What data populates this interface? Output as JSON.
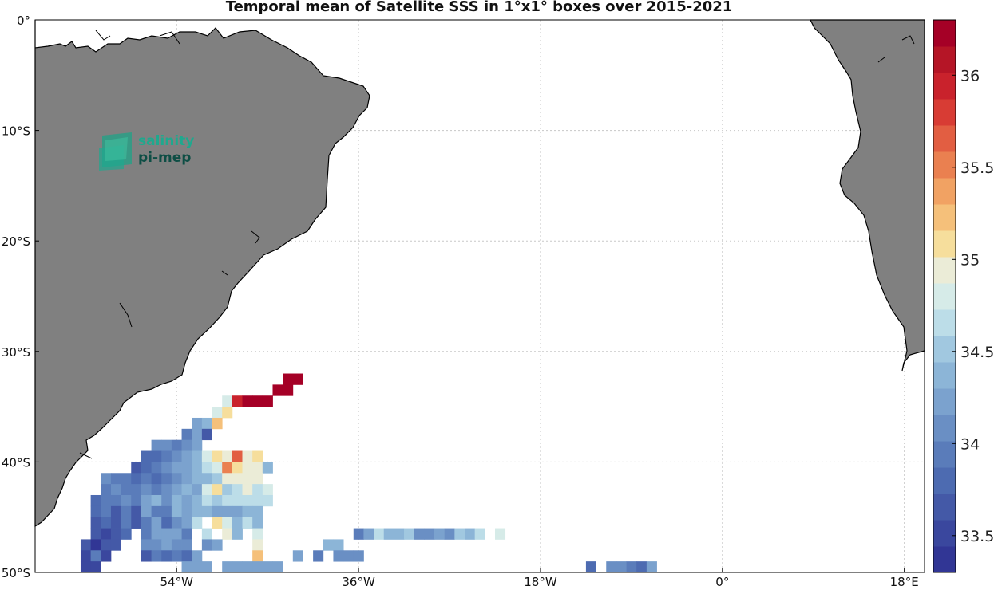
{
  "title": "Temporal mean of Satellite SSS in 1°x1° boxes over 2015-2021",
  "logo": {
    "line1": "salinity",
    "line2": "pi-mep"
  },
  "map": {
    "projection": "equirectangular",
    "lon_range": [
      -68,
      20
    ],
    "lat_range": [
      -50,
      0
    ],
    "grid": true,
    "land_color": "#808080",
    "lat_ticks": [
      {
        "value": 0,
        "label": "0°"
      },
      {
        "value": -10,
        "label": "10°S"
      },
      {
        "value": -20,
        "label": "20°S"
      },
      {
        "value": -30,
        "label": "30°S"
      },
      {
        "value": -40,
        "label": "40°S"
      },
      {
        "value": -50,
        "label": "50°S"
      }
    ],
    "lon_ticks": [
      {
        "value": -54,
        "label": "54°W"
      },
      {
        "value": -36,
        "label": "36°W"
      },
      {
        "value": -18,
        "label": "18°W"
      },
      {
        "value": 0,
        "label": "0°"
      },
      {
        "value": 18,
        "label": "18°E"
      }
    ]
  },
  "colorbar": {
    "min": 33.3,
    "max": 36.3,
    "colors": [
      "#313695",
      "#3a479e",
      "#4459a7",
      "#4d6bb1",
      "#5a7cba",
      "#6a8fc4",
      "#7ba2ce",
      "#8cb5d7",
      "#a1c8e0",
      "#bcdde8",
      "#d6ebe8",
      "#ebecd7",
      "#f6de9c",
      "#f5c07a",
      "#f1a263",
      "#ea8050",
      "#e25e42",
      "#d83c34",
      "#c9222c",
      "#b51526",
      "#a50026"
    ],
    "ticks": [
      {
        "value": 33.5,
        "label": "33.5"
      },
      {
        "value": 34,
        "label": "34"
      },
      {
        "value": 34.5,
        "label": "34.5"
      },
      {
        "value": 35,
        "label": "35"
      },
      {
        "value": 35.5,
        "label": "35.5"
      },
      {
        "value": 36,
        "label": "36"
      }
    ]
  },
  "chart_data": {
    "type": "heatmap",
    "title": "Temporal mean of Satellite SSS in 1°x1° boxes over 2015-2021",
    "variable": "Satellite SSS",
    "cell_size_deg": 1,
    "cells": [
      {
        "lon": -43,
        "lat": -32.5,
        "v": 36.2
      },
      {
        "lon": -42,
        "lat": -32.5,
        "v": 36.2
      },
      {
        "lon": -44,
        "lat": -33.5,
        "v": 36.2
      },
      {
        "lon": -43,
        "lat": -33.5,
        "v": 36.2
      },
      {
        "lon": -49,
        "lat": -34.5,
        "v": 34.8
      },
      {
        "lon": -48,
        "lat": -34.5,
        "v": 36.0
      },
      {
        "lon": -47,
        "lat": -34.5,
        "v": 36.2
      },
      {
        "lon": -46,
        "lat": -34.5,
        "v": 36.2
      },
      {
        "lon": -45,
        "lat": -34.5,
        "v": 36.2
      },
      {
        "lon": -50,
        "lat": -35.5,
        "v": 34.8
      },
      {
        "lon": -49,
        "lat": -35.5,
        "v": 35.1
      },
      {
        "lon": -52,
        "lat": -36.5,
        "v": 34.2
      },
      {
        "lon": -51,
        "lat": -36.5,
        "v": 34.3
      },
      {
        "lon": -50,
        "lat": -36.5,
        "v": 35.2
      },
      {
        "lon": -53,
        "lat": -37.5,
        "v": 34.0
      },
      {
        "lon": -52,
        "lat": -37.5,
        "v": 34.2
      },
      {
        "lon": -51,
        "lat": -37.5,
        "v": 33.7
      },
      {
        "lon": -56,
        "lat": -38.5,
        "v": 34.1
      },
      {
        "lon": -55,
        "lat": -38.5,
        "v": 34.1
      },
      {
        "lon": -54,
        "lat": -38.5,
        "v": 34.0
      },
      {
        "lon": -53,
        "lat": -38.5,
        "v": 34.1
      },
      {
        "lon": -52,
        "lat": -38.5,
        "v": 34.2
      },
      {
        "lon": -57,
        "lat": -39.5,
        "v": 33.8
      },
      {
        "lon": -56,
        "lat": -39.5,
        "v": 33.8
      },
      {
        "lon": -55,
        "lat": -39.5,
        "v": 34.0
      },
      {
        "lon": -54,
        "lat": -39.5,
        "v": 34.1
      },
      {
        "lon": -53,
        "lat": -39.5,
        "v": 34.2
      },
      {
        "lon": -52,
        "lat": -39.5,
        "v": 34.3
      },
      {
        "lon": -51,
        "lat": -39.5,
        "v": 34.8
      },
      {
        "lon": -50,
        "lat": -39.5,
        "v": 35.1
      },
      {
        "lon": -49,
        "lat": -39.5,
        "v": 34.9
      },
      {
        "lon": -48,
        "lat": -39.5,
        "v": 35.6
      },
      {
        "lon": -47,
        "lat": -39.5,
        "v": 34.9
      },
      {
        "lon": -46,
        "lat": -39.5,
        "v": 35.1
      },
      {
        "lon": -58,
        "lat": -40.5,
        "v": 33.7
      },
      {
        "lon": -57,
        "lat": -40.5,
        "v": 33.8
      },
      {
        "lon": -56,
        "lat": -40.5,
        "v": 34.0
      },
      {
        "lon": -55,
        "lat": -40.5,
        "v": 34.1
      },
      {
        "lon": -54,
        "lat": -40.5,
        "v": 34.2
      },
      {
        "lon": -53,
        "lat": -40.5,
        "v": 34.2
      },
      {
        "lon": -52,
        "lat": -40.5,
        "v": 34.3
      },
      {
        "lon": -51,
        "lat": -40.5,
        "v": 34.6
      },
      {
        "lon": -50,
        "lat": -40.5,
        "v": 34.8
      },
      {
        "lon": -49,
        "lat": -40.5,
        "v": 35.5
      },
      {
        "lon": -48,
        "lat": -40.5,
        "v": 35.1
      },
      {
        "lon": -47,
        "lat": -40.5,
        "v": 35.0
      },
      {
        "lon": -46,
        "lat": -40.5,
        "v": 34.9
      },
      {
        "lon": -45,
        "lat": -40.5,
        "v": 34.4
      },
      {
        "lon": -61,
        "lat": -41.5,
        "v": 34.1
      },
      {
        "lon": -60,
        "lat": -41.5,
        "v": 34.0
      },
      {
        "lon": -59,
        "lat": -41.5,
        "v": 34.0
      },
      {
        "lon": -58,
        "lat": -41.5,
        "v": 33.8
      },
      {
        "lon": -57,
        "lat": -41.5,
        "v": 34.0
      },
      {
        "lon": -56,
        "lat": -41.5,
        "v": 33.8
      },
      {
        "lon": -55,
        "lat": -41.5,
        "v": 34.0
      },
      {
        "lon": -54,
        "lat": -41.5,
        "v": 34.1
      },
      {
        "lon": -53,
        "lat": -41.5,
        "v": 34.2
      },
      {
        "lon": -52,
        "lat": -41.5,
        "v": 34.3
      },
      {
        "lon": -51,
        "lat": -41.5,
        "v": 34.4
      },
      {
        "lon": -50,
        "lat": -41.5,
        "v": 34.5
      },
      {
        "lon": -49,
        "lat": -41.5,
        "v": 34.9
      },
      {
        "lon": -48,
        "lat": -41.5,
        "v": 34.9
      },
      {
        "lon": -47,
        "lat": -41.5,
        "v": 34.9
      },
      {
        "lon": -46,
        "lat": -41.5,
        "v": 34.9
      },
      {
        "lon": -61,
        "lat": -42.5,
        "v": 34.0
      },
      {
        "lon": -60,
        "lat": -42.5,
        "v": 34.1
      },
      {
        "lon": -59,
        "lat": -42.5,
        "v": 33.9
      },
      {
        "lon": -58,
        "lat": -42.5,
        "v": 33.9
      },
      {
        "lon": -57,
        "lat": -42.5,
        "v": 34.1
      },
      {
        "lon": -56,
        "lat": -42.5,
        "v": 34.0
      },
      {
        "lon": -55,
        "lat": -42.5,
        "v": 34.1
      },
      {
        "lon": -54,
        "lat": -42.5,
        "v": 34.2
      },
      {
        "lon": -53,
        "lat": -42.5,
        "v": 34.3
      },
      {
        "lon": -52,
        "lat": -42.5,
        "v": 34.2
      },
      {
        "lon": -51,
        "lat": -42.5,
        "v": 34.8
      },
      {
        "lon": -50,
        "lat": -42.5,
        "v": 35.1
      },
      {
        "lon": -49,
        "lat": -42.5,
        "v": 34.5
      },
      {
        "lon": -48,
        "lat": -42.5,
        "v": 34.6
      },
      {
        "lon": -47,
        "lat": -42.5,
        "v": 35.0
      },
      {
        "lon": -46,
        "lat": -42.5,
        "v": 34.7
      },
      {
        "lon": -45,
        "lat": -42.5,
        "v": 34.8
      },
      {
        "lon": -62,
        "lat": -43.5,
        "v": 33.8
      },
      {
        "lon": -61,
        "lat": -43.5,
        "v": 33.9
      },
      {
        "lon": -60,
        "lat": -43.5,
        "v": 34.0
      },
      {
        "lon": -59,
        "lat": -43.5,
        "v": 34.1
      },
      {
        "lon": -58,
        "lat": -43.5,
        "v": 34.0
      },
      {
        "lon": -57,
        "lat": -43.5,
        "v": 34.2
      },
      {
        "lon": -56,
        "lat": -43.5,
        "v": 34.3
      },
      {
        "lon": -55,
        "lat": -43.5,
        "v": 34.1
      },
      {
        "lon": -54,
        "lat": -43.5,
        "v": 34.3
      },
      {
        "lon": -53,
        "lat": -43.5,
        "v": 34.2
      },
      {
        "lon": -52,
        "lat": -43.5,
        "v": 34.3
      },
      {
        "lon": -51,
        "lat": -43.5,
        "v": 34.6
      },
      {
        "lon": -50,
        "lat": -43.5,
        "v": 34.5
      },
      {
        "lon": -49,
        "lat": -43.5,
        "v": 34.6
      },
      {
        "lon": -48,
        "lat": -43.5,
        "v": 34.6
      },
      {
        "lon": -47,
        "lat": -43.5,
        "v": 34.6
      },
      {
        "lon": -46,
        "lat": -43.5,
        "v": 34.6
      },
      {
        "lon": -45,
        "lat": -43.5,
        "v": 34.6
      },
      {
        "lon": -62,
        "lat": -44.5,
        "v": 33.8
      },
      {
        "lon": -61,
        "lat": -44.5,
        "v": 34.0
      },
      {
        "lon": -60,
        "lat": -44.5,
        "v": 33.7
      },
      {
        "lon": -59,
        "lat": -44.5,
        "v": 33.9
      },
      {
        "lon": -58,
        "lat": -44.5,
        "v": 33.7
      },
      {
        "lon": -57,
        "lat": -44.5,
        "v": 34.2
      },
      {
        "lon": -56,
        "lat": -44.5,
        "v": 34.0
      },
      {
        "lon": -55,
        "lat": -44.5,
        "v": 34.0
      },
      {
        "lon": -54,
        "lat": -44.5,
        "v": 34.3
      },
      {
        "lon": -53,
        "lat": -44.5,
        "v": 34.2
      },
      {
        "lon": -52,
        "lat": -44.5,
        "v": 34.3
      },
      {
        "lon": -51,
        "lat": -44.5,
        "v": 34.3
      },
      {
        "lon": -50,
        "lat": -44.5,
        "v": 34.2
      },
      {
        "lon": -49,
        "lat": -44.5,
        "v": 34.2
      },
      {
        "lon": -48,
        "lat": -44.5,
        "v": 34.2
      },
      {
        "lon": -47,
        "lat": -44.5,
        "v": 34.3
      },
      {
        "lon": -46,
        "lat": -44.5,
        "v": 34.3
      },
      {
        "lon": -62,
        "lat": -45.5,
        "v": 33.7
      },
      {
        "lon": -61,
        "lat": -45.5,
        "v": 33.8
      },
      {
        "lon": -60,
        "lat": -45.5,
        "v": 33.7
      },
      {
        "lon": -59,
        "lat": -45.5,
        "v": 34.0
      },
      {
        "lon": -58,
        "lat": -45.5,
        "v": 33.6
      },
      {
        "lon": -57,
        "lat": -45.5,
        "v": 34.0
      },
      {
        "lon": -56,
        "lat": -45.5,
        "v": 34.2
      },
      {
        "lon": -55,
        "lat": -45.5,
        "v": 33.8
      },
      {
        "lon": -54,
        "lat": -45.5,
        "v": 34.1
      },
      {
        "lon": -53,
        "lat": -45.5,
        "v": 34.2
      },
      {
        "lon": -52,
        "lat": -45.5,
        "v": 34.6
      },
      {
        "lon": -50,
        "lat": -45.5,
        "v": 35.1
      },
      {
        "lon": -49,
        "lat": -45.5,
        "v": 34.8
      },
      {
        "lon": -48,
        "lat": -45.5,
        "v": 34.4
      },
      {
        "lon": -47,
        "lat": -45.5,
        "v": 34.6
      },
      {
        "lon": -46,
        "lat": -45.5,
        "v": 34.3
      },
      {
        "lon": -62,
        "lat": -46.5,
        "v": 33.7
      },
      {
        "lon": -61,
        "lat": -46.5,
        "v": 33.5
      },
      {
        "lon": -60,
        "lat": -46.5,
        "v": 33.7
      },
      {
        "lon": -59,
        "lat": -46.5,
        "v": 33.8
      },
      {
        "lon": -57,
        "lat": -46.5,
        "v": 34.0
      },
      {
        "lon": -56,
        "lat": -46.5,
        "v": 34.2
      },
      {
        "lon": -55,
        "lat": -46.5,
        "v": 34.2
      },
      {
        "lon": -54,
        "lat": -46.5,
        "v": 34.2
      },
      {
        "lon": -53,
        "lat": -46.5,
        "v": 34.0
      },
      {
        "lon": -51,
        "lat": -46.5,
        "v": 34.7
      },
      {
        "lon": -49,
        "lat": -46.5,
        "v": 34.9
      },
      {
        "lon": -48,
        "lat": -46.5,
        "v": 34.4
      },
      {
        "lon": -46,
        "lat": -46.5,
        "v": 34.8
      },
      {
        "lon": -36,
        "lat": -46.5,
        "v": 34.0
      },
      {
        "lon": -35,
        "lat": -46.5,
        "v": 34.2
      },
      {
        "lon": -34,
        "lat": -46.5,
        "v": 34.6
      },
      {
        "lon": -33,
        "lat": -46.5,
        "v": 34.4
      },
      {
        "lon": -32,
        "lat": -46.5,
        "v": 34.3
      },
      {
        "lon": -31,
        "lat": -46.5,
        "v": 34.5
      },
      {
        "lon": -30,
        "lat": -46.5,
        "v": 34.1
      },
      {
        "lon": -29,
        "lat": -46.5,
        "v": 34.1
      },
      {
        "lon": -28,
        "lat": -46.5,
        "v": 34.2
      },
      {
        "lon": -27,
        "lat": -46.5,
        "v": 34.1
      },
      {
        "lon": -26,
        "lat": -46.5,
        "v": 34.5
      },
      {
        "lon": -25,
        "lat": -46.5,
        "v": 34.3
      },
      {
        "lon": -24,
        "lat": -46.5,
        "v": 34.6
      },
      {
        "lon": -22,
        "lat": -46.5,
        "v": 34.8
      },
      {
        "lon": -63,
        "lat": -47.5,
        "v": 33.6
      },
      {
        "lon": -62,
        "lat": -47.5,
        "v": 33.4
      },
      {
        "lon": -61,
        "lat": -47.5,
        "v": 33.6
      },
      {
        "lon": -60,
        "lat": -47.5,
        "v": 33.6
      },
      {
        "lon": -57,
        "lat": -47.5,
        "v": 34.1
      },
      {
        "lon": -56,
        "lat": -47.5,
        "v": 34.1
      },
      {
        "lon": -55,
        "lat": -47.5,
        "v": 34.2
      },
      {
        "lon": -54,
        "lat": -47.5,
        "v": 34.1
      },
      {
        "lon": -53,
        "lat": -47.5,
        "v": 34.1
      },
      {
        "lon": -51,
        "lat": -47.5,
        "v": 34.1
      },
      {
        "lon": -50,
        "lat": -47.5,
        "v": 34.2
      },
      {
        "lon": -46,
        "lat": -47.5,
        "v": 34.9
      },
      {
        "lon": -39,
        "lat": -47.5,
        "v": 34.3
      },
      {
        "lon": -38,
        "lat": -47.5,
        "v": 34.3
      },
      {
        "lon": -63,
        "lat": -48.5,
        "v": 33.5
      },
      {
        "lon": -62,
        "lat": -48.5,
        "v": 33.9
      },
      {
        "lon": -61,
        "lat": -48.5,
        "v": 33.5
      },
      {
        "lon": -57,
        "lat": -48.5,
        "v": 33.7
      },
      {
        "lon": -56,
        "lat": -48.5,
        "v": 33.9
      },
      {
        "lon": -55,
        "lat": -48.5,
        "v": 33.8
      },
      {
        "lon": -54,
        "lat": -48.5,
        "v": 33.9
      },
      {
        "lon": -53,
        "lat": -48.5,
        "v": 33.8
      },
      {
        "lon": -52,
        "lat": -48.5,
        "v": 34.2
      },
      {
        "lon": -46,
        "lat": -48.5,
        "v": 35.2
      },
      {
        "lon": -42,
        "lat": -48.5,
        "v": 34.2
      },
      {
        "lon": -40,
        "lat": -48.5,
        "v": 33.9
      },
      {
        "lon": -38,
        "lat": -48.5,
        "v": 34.1
      },
      {
        "lon": -37,
        "lat": -48.5,
        "v": 34.1
      },
      {
        "lon": -36,
        "lat": -48.5,
        "v": 34.1
      },
      {
        "lon": -63,
        "lat": -49.5,
        "v": 33.5
      },
      {
        "lon": -62,
        "lat": -49.5,
        "v": 33.5
      },
      {
        "lon": -53,
        "lat": -49.5,
        "v": 34.2
      },
      {
        "lon": -52,
        "lat": -49.5,
        "v": 34.2
      },
      {
        "lon": -51,
        "lat": -49.5,
        "v": 34.2
      },
      {
        "lon": -49,
        "lat": -49.5,
        "v": 34.2
      },
      {
        "lon": -48,
        "lat": -49.5,
        "v": 34.2
      },
      {
        "lon": -47,
        "lat": -49.5,
        "v": 34.2
      },
      {
        "lon": -46,
        "lat": -49.5,
        "v": 34.2
      },
      {
        "lon": -45,
        "lat": -49.5,
        "v": 34.2
      },
      {
        "lon": -44,
        "lat": -49.5,
        "v": 34.2
      },
      {
        "lon": -13,
        "lat": -49.5,
        "v": 33.8
      },
      {
        "lon": -11,
        "lat": -49.5,
        "v": 34.1
      },
      {
        "lon": -10,
        "lat": -49.5,
        "v": 34.1
      },
      {
        "lon": -9,
        "lat": -49.5,
        "v": 34.0
      },
      {
        "lon": -8,
        "lat": -49.5,
        "v": 33.8
      },
      {
        "lon": -7,
        "lat": -49.5,
        "v": 34.2
      }
    ]
  }
}
